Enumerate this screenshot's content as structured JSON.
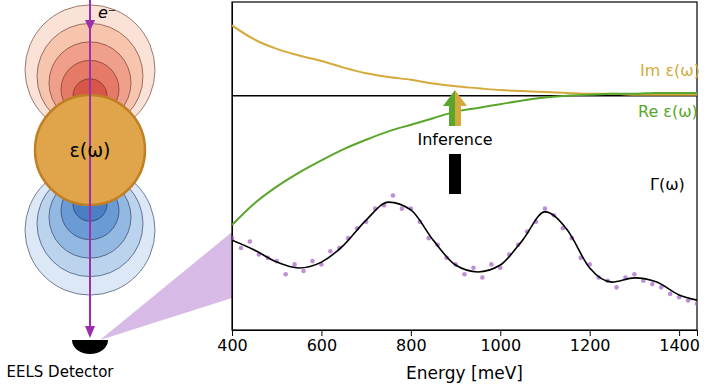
{
  "chart_data": [
    {
      "type": "line",
      "x": [
        400,
        450,
        500,
        550,
        600,
        650,
        700,
        750,
        800,
        850,
        900,
        950,
        1000,
        1050,
        1100,
        1150,
        1200,
        1250,
        1300,
        1350,
        1400,
        1440
      ],
      "series": [
        {
          "name": "Im ε(ω)",
          "color": "#d4aa3c",
          "values": [
            0.75,
            0.6,
            0.5,
            0.43,
            0.37,
            0.3,
            0.24,
            0.2,
            0.17,
            0.13,
            0.1,
            0.08,
            0.06,
            0.05,
            0.04,
            0.03,
            0.02,
            0.02,
            0.01,
            0.01,
            0.01,
            0.01
          ]
        },
        {
          "name": "Re ε(ω)",
          "color": "#5aa52c",
          "values": [
            -1.38,
            -1.15,
            -0.97,
            -0.82,
            -0.69,
            -0.57,
            -0.47,
            -0.38,
            -0.31,
            -0.24,
            -0.17,
            -0.13,
            -0.09,
            -0.05,
            -0.02,
            0,
            0.01,
            0.02,
            0.02,
            0.03,
            0.03,
            0.03
          ]
        }
      ],
      "xlim": [
        400,
        1440
      ],
      "ylim": [
        -2.5,
        1
      ],
      "yticks": [
        0
      ],
      "grid": true,
      "tick_labels": false,
      "annotation": "Inference"
    },
    {
      "type": "scatter",
      "xlabel": "Energy [meV]",
      "xlim": [
        400,
        1440
      ],
      "xticks": [
        400,
        600,
        800,
        1000,
        1200,
        1400
      ],
      "ylim": [
        0,
        1
      ],
      "tick_labels": "x",
      "series": [
        {
          "name": "Γ(ω)",
          "type": "line",
          "color": "#000000",
          "x": [
            400,
            450,
            500,
            550,
            600,
            650,
            700,
            750,
            800,
            850,
            900,
            950,
            1000,
            1050,
            1100,
            1150,
            1200,
            1250,
            1300,
            1350,
            1400,
            1440
          ],
          "values": [
            0.274,
            0.244,
            0.207,
            0.189,
            0.207,
            0.259,
            0.335,
            0.39,
            0.366,
            0.274,
            0.198,
            0.177,
            0.198,
            0.274,
            0.36,
            0.305,
            0.189,
            0.146,
            0.159,
            0.146,
            0.107,
            0.091
          ]
        },
        {
          "type": "scatter",
          "color": "#a25fc4",
          "marker": "circle",
          "x": [
            400,
            420,
            440,
            460,
            480,
            500,
            520,
            540,
            560,
            580,
            600,
            620,
            640,
            660,
            680,
            700,
            720,
            740,
            760,
            780,
            800,
            820,
            840,
            860,
            880,
            900,
            920,
            940,
            960,
            980,
            1000,
            1020,
            1040,
            1060,
            1080,
            1100,
            1120,
            1140,
            1160,
            1180,
            1200,
            1220,
            1240,
            1260,
            1280,
            1300,
            1320,
            1340,
            1360,
            1380,
            1400,
            1420,
            1440
          ],
          "values": [
            0.28,
            0.25,
            0.27,
            0.23,
            0.22,
            0.21,
            0.17,
            0.2,
            0.18,
            0.21,
            0.2,
            0.24,
            0.25,
            0.28,
            0.31,
            0.33,
            0.37,
            0.38,
            0.41,
            0.37,
            0.37,
            0.33,
            0.28,
            0.26,
            0.22,
            0.2,
            0.17,
            0.19,
            0.16,
            0.2,
            0.19,
            0.23,
            0.26,
            0.3,
            0.33,
            0.37,
            0.35,
            0.31,
            0.28,
            0.22,
            0.2,
            0.16,
            0.15,
            0.13,
            0.16,
            0.17,
            0.15,
            0.14,
            0.13,
            0.11,
            0.1,
            0.09,
            0.08
          ]
        }
      ]
    }
  ],
  "diagram": {
    "beam_label": "e⁻",
    "sphere_label": "ε(ω)",
    "detector_label": "EELS Detector"
  }
}
